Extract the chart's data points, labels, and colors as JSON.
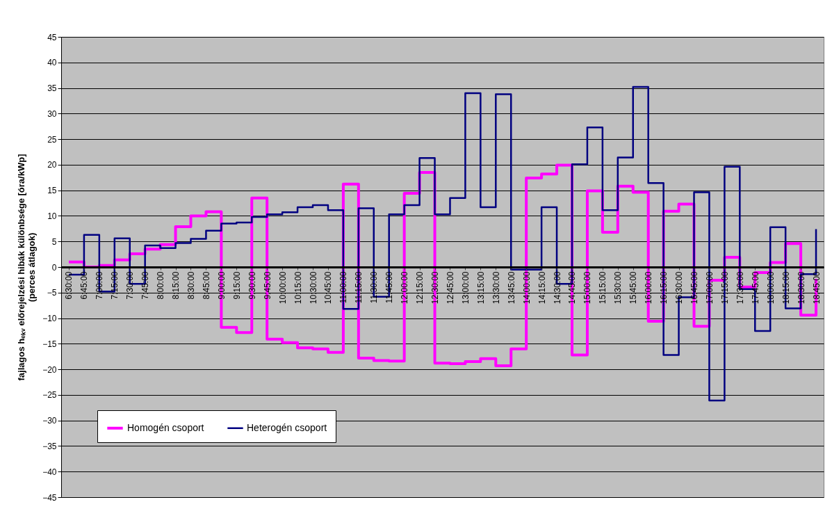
{
  "chart_data": {
    "type": "step",
    "ylabel": "fajlagos hₑₖᵥ előrejelzési hibák különbsége  [óra/kWp]\n(perces átlagok)",
    "categories": [
      "6:30:00",
      "6:45:00",
      "7:00:00",
      "7:15:00",
      "7:30:00",
      "7:45:00",
      "8:00:00",
      "8:15:00",
      "8:30:00",
      "8:45:00",
      "9:00:00",
      "9:15:00",
      "9:30:00",
      "9:45:00",
      "10:00:00",
      "10:15:00",
      "10:30:00",
      "10:45:00",
      "11:00:00",
      "11:15:00",
      "11:30:00",
      "11:45:00",
      "12:00:00",
      "12:15:00",
      "12:30:00",
      "12:45:00",
      "13:00:00",
      "13:15:00",
      "13:30:00",
      "13:45:00",
      "14:00:00",
      "14:15:00",
      "14:30:00",
      "14:45:00",
      "15:00:00",
      "15:15:00",
      "15:30:00",
      "15:45:00",
      "16:00:00",
      "16:15:00",
      "16:30:00",
      "16:45:00",
      "17:00:00",
      "17:15:00",
      "17:30:00",
      "17:45:00",
      "18:00:00",
      "18:15:00",
      "18:30:00",
      "18:45:00"
    ],
    "series": [
      {
        "name": "Homogén csoport",
        "color": "#ff00ff",
        "values": [
          1.0,
          0.0,
          0.3,
          1.4,
          2.6,
          3.5,
          4.4,
          7.9,
          10.0,
          10.8,
          -11.8,
          -12.8,
          13.5,
          -14.1,
          -14.8,
          -15.8,
          -16.0,
          -16.7,
          16.2,
          -17.8,
          -18.3,
          -18.4,
          14.4,
          18.5,
          -18.8,
          -18.9,
          -18.5,
          -17.9,
          -19.3,
          -16.0,
          17.4,
          18.2,
          19.9,
          -17.2,
          14.9,
          6.8,
          15.8,
          14.6,
          -10.6,
          10.9,
          12.3,
          -11.6,
          -2.6,
          1.9,
          -3.9,
          -1.1,
          0.9,
          4.6,
          -9.4,
          -2.3
        ]
      },
      {
        "name": "Heterogén csoport",
        "color": "#000080",
        "values": [
          -1.5,
          6.3,
          -4.8,
          5.6,
          -3.3,
          4.2,
          3.7,
          4.7,
          5.5,
          7.1,
          8.5,
          8.7,
          9.8,
          10.3,
          10.7,
          11.7,
          12.1,
          11.1,
          -8.2,
          11.5,
          -5.8,
          10.3,
          12.1,
          21.3,
          10.3,
          13.5,
          34.0,
          11.7,
          33.8,
          -0.5,
          -0.5,
          11.7,
          -3.3,
          20.1,
          27.3,
          11.1,
          21.4,
          35.2,
          16.4,
          -17.2,
          -5.9,
          14.6,
          -26.1,
          19.6,
          -4.3,
          -12.5,
          7.8,
          -8.1,
          -1.4,
          7.4
        ]
      }
    ],
    "ylim": [
      -45,
      45
    ],
    "yticks": [
      -45,
      -40,
      -35,
      -30,
      -25,
      -20,
      -15,
      -10,
      -5,
      0,
      5,
      10,
      15,
      20,
      25,
      30,
      35,
      40,
      45
    ],
    "grid": "y",
    "legend": "bottom left"
  }
}
